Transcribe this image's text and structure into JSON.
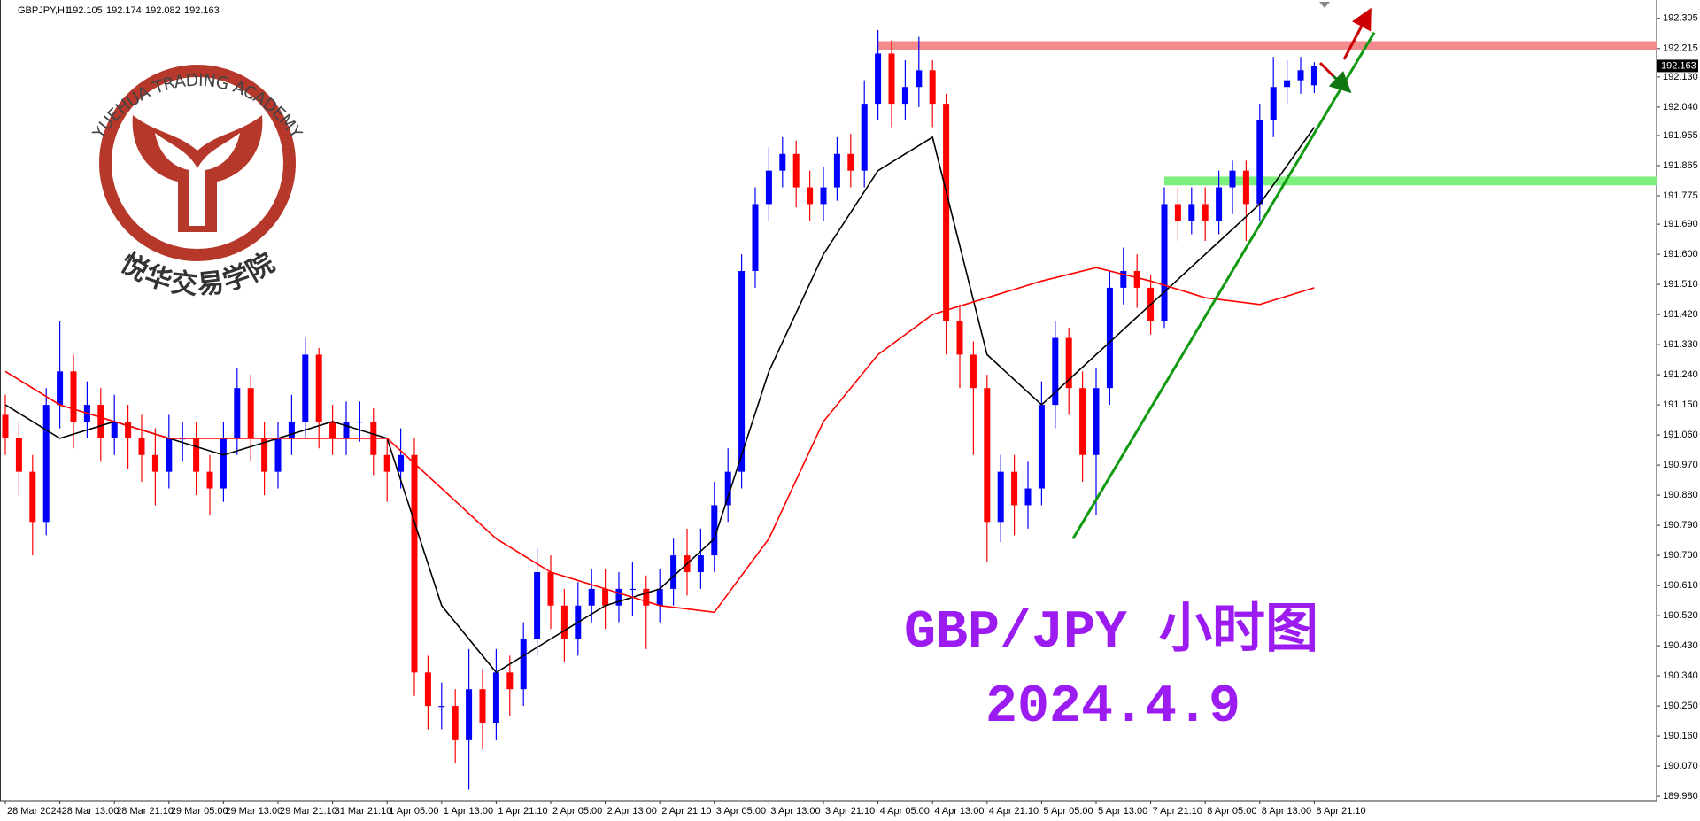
{
  "chart_data": {
    "type": "candlestick",
    "symbol": "GBPJPY,H1",
    "annotation_title": "GBP/JPY 小时图",
    "annotation_date": "2024.4.9",
    "watermark": {
      "arc_text": "YUEHUA TRADING ACADEMY",
      "name_cn": "悦华交易学院"
    },
    "up_color": "#0000ff",
    "down_color": "#ff0000",
    "categories": [
      "28 Mar 2024",
      null,
      null,
      null,
      "28 Mar 13:00",
      null,
      null,
      null,
      "28 Mar 21:10",
      null,
      null,
      null,
      "29 Mar 05:00",
      null,
      null,
      null,
      "29 Mar 13:00",
      null,
      null,
      null,
      "29 Mar 21:10",
      null,
      null,
      null,
      "31 Mar 21:10",
      null,
      null,
      null,
      "1 Apr 05:00",
      null,
      null,
      null,
      "1 Apr 13:00",
      null,
      null,
      null,
      "1 Apr 21:10",
      null,
      null,
      null,
      "2 Apr 05:00",
      null,
      null,
      null,
      "2 Apr 13:00",
      null,
      null,
      null,
      "2 Apr 21:10",
      null,
      null,
      null,
      "3 Apr 05:00",
      null,
      null,
      null,
      "3 Apr 13:00",
      null,
      null,
      null,
      "3 Apr 21:10",
      null,
      null,
      null,
      "4 Apr 05:00",
      null,
      null,
      null,
      "4 Apr 13:00",
      null,
      null,
      null,
      "4 Apr 21:10",
      null,
      null,
      null,
      "5 Apr 05:00",
      null,
      null,
      null,
      "5 Apr 13:00",
      null,
      null,
      null,
      "7 Apr 21:10",
      null,
      null,
      null,
      "8 Apr 05:00",
      null,
      null,
      null,
      "8 Apr 13:00",
      null,
      null,
      null,
      "8 Apr 21:10"
    ],
    "open": [
      191.12,
      191.05,
      190.95,
      190.8,
      191.15,
      191.25,
      191.1,
      191.15,
      191.05,
      191.1,
      191.05,
      191.0,
      190.95,
      191.05,
      191.05,
      190.95,
      190.9,
      191.05,
      191.2,
      191.05,
      190.95,
      191.05,
      191.1,
      191.3,
      191.1,
      191.05,
      191.1,
      191.1,
      191.0,
      190.95,
      191.0,
      190.35,
      190.25,
      190.25,
      190.15,
      190.3,
      190.2,
      190.35,
      190.3,
      190.45,
      190.65,
      190.55,
      190.45,
      190.55,
      190.6,
      190.55,
      190.6,
      190.6,
      190.55,
      190.6,
      190.7,
      190.65,
      190.7,
      190.85,
      190.95,
      191.55,
      191.75,
      191.85,
      191.9,
      191.8,
      191.75,
      191.8,
      191.9,
      191.85,
      192.05,
      192.2,
      192.05,
      192.1,
      192.15,
      192.05,
      191.4,
      191.3,
      191.2,
      190.8,
      190.95,
      190.85,
      190.9,
      191.15,
      191.35,
      191.2,
      191.0,
      191.2,
      191.5,
      191.55,
      191.5,
      191.4,
      191.75,
      191.7,
      191.75,
      191.7,
      191.8,
      191.85,
      191.75,
      192.0,
      192.1,
      192.12,
      192.105
    ],
    "high": [
      191.18,
      191.1,
      191.0,
      191.2,
      191.4,
      191.3,
      191.22,
      191.2,
      191.18,
      191.15,
      191.12,
      191.08,
      191.12,
      191.1,
      191.1,
      191.0,
      191.1,
      191.26,
      191.24,
      191.1,
      191.1,
      191.18,
      191.35,
      191.32,
      191.15,
      191.16,
      191.16,
      191.14,
      191.05,
      191.08,
      191.05,
      190.4,
      190.32,
      190.3,
      190.42,
      190.36,
      190.42,
      190.4,
      190.5,
      190.72,
      190.7,
      190.6,
      190.62,
      190.66,
      190.66,
      190.65,
      190.68,
      190.64,
      190.66,
      190.75,
      190.78,
      190.78,
      190.92,
      191.02,
      191.6,
      191.8,
      191.92,
      191.95,
      191.94,
      191.85,
      191.86,
      191.95,
      191.96,
      192.12,
      192.27,
      192.24,
      192.18,
      192.25,
      192.18,
      192.08,
      191.45,
      191.34,
      191.24,
      191.0,
      191.0,
      190.98,
      191.22,
      191.4,
      191.38,
      191.25,
      191.26,
      191.55,
      191.62,
      191.6,
      191.54,
      191.8,
      191.8,
      191.8,
      191.8,
      191.85,
      191.88,
      191.88,
      192.05,
      192.19,
      192.18,
      192.19,
      192.174
    ],
    "low": [
      191.0,
      190.88,
      190.7,
      190.76,
      191.08,
      191.02,
      191.05,
      190.98,
      191.0,
      190.96,
      190.92,
      190.85,
      190.9,
      190.98,
      190.88,
      190.82,
      190.86,
      191.0,
      190.98,
      190.88,
      190.9,
      191.0,
      191.05,
      191.02,
      191.0,
      191.0,
      191.04,
      190.94,
      190.86,
      190.9,
      190.28,
      190.18,
      190.18,
      190.08,
      190.0,
      190.12,
      190.15,
      190.22,
      190.25,
      190.4,
      190.48,
      190.38,
      190.4,
      190.5,
      190.48,
      190.5,
      190.52,
      190.42,
      190.5,
      190.55,
      190.58,
      190.6,
      190.65,
      190.8,
      190.9,
      191.5,
      191.7,
      191.8,
      191.74,
      191.7,
      191.7,
      191.76,
      191.8,
      191.8,
      192.0,
      191.98,
      192.0,
      192.04,
      191.98,
      191.3,
      191.2,
      191.0,
      190.68,
      190.74,
      190.76,
      190.78,
      190.85,
      191.08,
      191.12,
      190.92,
      190.82,
      191.15,
      191.45,
      191.44,
      191.36,
      191.38,
      191.64,
      191.66,
      191.64,
      191.66,
      191.72,
      191.64,
      191.7,
      191.95,
      192.05,
      192.08,
      192.082
    ],
    "close": [
      191.05,
      190.95,
      190.8,
      191.15,
      191.25,
      191.1,
      191.15,
      191.05,
      191.1,
      191.05,
      191.0,
      190.95,
      191.05,
      191.05,
      190.95,
      190.9,
      191.05,
      191.2,
      191.05,
      190.95,
      191.05,
      191.1,
      191.3,
      191.1,
      191.05,
      191.1,
      191.1,
      191.0,
      190.95,
      191.0,
      190.35,
      190.25,
      190.25,
      190.15,
      190.3,
      190.2,
      190.35,
      190.3,
      190.45,
      190.65,
      190.55,
      190.45,
      190.55,
      190.6,
      190.55,
      190.6,
      190.6,
      190.55,
      190.6,
      190.7,
      190.65,
      190.7,
      190.85,
      190.95,
      191.55,
      191.75,
      191.85,
      191.9,
      191.8,
      191.75,
      191.8,
      191.9,
      191.85,
      192.05,
      192.2,
      192.05,
      192.1,
      192.15,
      192.05,
      191.4,
      191.3,
      191.2,
      190.8,
      190.95,
      190.85,
      190.9,
      191.15,
      191.35,
      191.2,
      191.0,
      191.2,
      191.5,
      191.55,
      191.5,
      191.4,
      191.75,
      191.7,
      191.75,
      191.7,
      191.8,
      191.85,
      191.75,
      192.0,
      192.1,
      192.12,
      192.15,
      192.163
    ],
    "overlays": [
      {
        "color": "#000000",
        "x": [
          0,
          4,
          8,
          12,
          16,
          20,
          24,
          28,
          32,
          36,
          40,
          44,
          48,
          52,
          56,
          60,
          64,
          68,
          72,
          76,
          80,
          84,
          88,
          92,
          96
        ],
        "values": [
          191.15,
          191.05,
          191.1,
          191.05,
          191.0,
          191.05,
          191.1,
          191.05,
          190.55,
          190.35,
          190.45,
          190.55,
          190.6,
          190.75,
          191.25,
          191.6,
          191.85,
          191.95,
          191.3,
          191.15,
          191.3,
          191.45,
          191.6,
          191.75,
          191.98
        ]
      },
      {
        "color": "#ff0000",
        "x": [
          0,
          4,
          8,
          12,
          16,
          20,
          24,
          28,
          32,
          36,
          40,
          44,
          48,
          52,
          56,
          60,
          64,
          68,
          72,
          76,
          80,
          84,
          88,
          92,
          96
        ],
        "values": [
          191.25,
          191.15,
          191.1,
          191.05,
          191.05,
          191.05,
          191.05,
          191.05,
          190.9,
          190.75,
          190.65,
          190.6,
          190.55,
          190.53,
          190.75,
          191.1,
          191.3,
          191.42,
          191.47,
          191.52,
          191.56,
          191.52,
          191.47,
          191.45,
          191.5
        ]
      }
    ],
    "zones": [
      {
        "from": 64,
        "range": [
          192.211,
          192.237
        ],
        "color": "#f28b8b"
      },
      {
        "from": 85,
        "range": [
          191.806,
          191.832
        ],
        "color": "#7def7d"
      }
    ],
    "trendline": {
      "x": [
        78.3,
        100.4
      ],
      "y": [
        190.75,
        192.263
      ],
      "color": "#119911"
    },
    "ylim": [
      189.967,
      192.36
    ],
    "yticks": [
      192.305,
      192.215,
      {
        "value": 192.13,
        "label": "192.130"
      },
      {
        "value": 192.04,
        "label": "192.040"
      },
      191.955,
      191.865,
      191.775,
      {
        "value": 191.69,
        "label": "191.690"
      },
      {
        "value": 191.6,
        "label": "191.600"
      },
      {
        "value": 191.51,
        "label": "191.510"
      },
      {
        "value": 191.42,
        "label": "191.420"
      },
      {
        "value": 191.33,
        "label": "191.330"
      },
      {
        "value": 191.24,
        "label": "191.240"
      },
      {
        "value": 191.15,
        "label": "191.150"
      },
      {
        "value": 191.06,
        "label": "191.060"
      },
      {
        "value": 190.97,
        "label": "190.970"
      },
      {
        "value": 190.88,
        "label": "190.880"
      },
      {
        "value": 190.79,
        "label": "190.790"
      },
      {
        "value": 190.7,
        "label": "190.700"
      },
      {
        "value": 190.61,
        "label": "190.610"
      },
      {
        "value": 190.52,
        "label": "190.520"
      },
      {
        "value": 190.43,
        "label": "190.430"
      },
      {
        "value": 190.34,
        "label": "190.340"
      },
      {
        "value": 190.25,
        "label": "190.250"
      },
      {
        "value": 190.16,
        "label": "190.160"
      },
      {
        "value": 190.07,
        "label": "190.070"
      },
      {
        "value": 189.98,
        "label": "189.980"
      }
    ]
  }
}
